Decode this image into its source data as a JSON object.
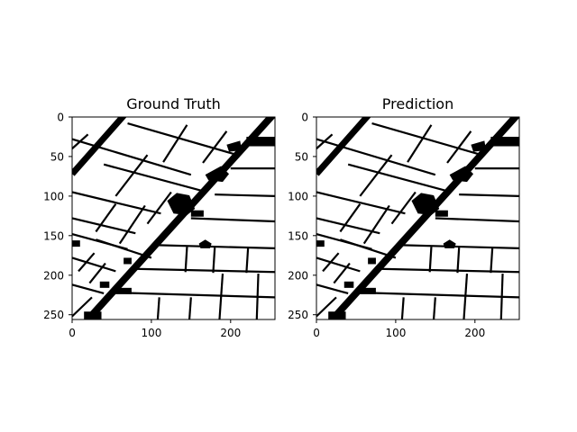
{
  "figure": {
    "panels": [
      {
        "title": "Ground Truth",
        "x_ticks": [
          "0",
          "100",
          "200"
        ],
        "y_ticks": [
          "0",
          "50",
          "100",
          "150",
          "200",
          "250"
        ]
      },
      {
        "title": "Prediction",
        "x_ticks": [
          "0",
          "100",
          "200"
        ],
        "y_ticks": [
          "0",
          "50",
          "100",
          "150",
          "200",
          "250"
        ]
      }
    ],
    "colors": {
      "background": "#ffffff",
      "foreground": "#000000"
    }
  }
}
